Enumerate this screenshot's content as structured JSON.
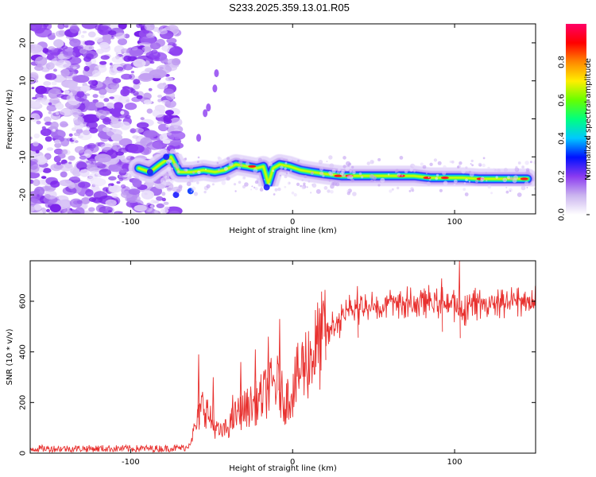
{
  "title": "S233.2025.359.13.01.R05",
  "chart_data": [
    {
      "type": "heatmap",
      "name": "spectrogram",
      "xlabel": "Height of straight line (km)",
      "ylabel": "Frequency (Hz)",
      "xlim": [
        -162,
        150
      ],
      "ylim": [
        -25,
        25
      ],
      "xticks": [
        -100,
        0,
        100
      ],
      "yticks": [
        20,
        10,
        0,
        -10,
        -20
      ],
      "noise_region_x": [
        -162,
        -75
      ],
      "ridge": [
        {
          "x": -95,
          "y": -13
        },
        {
          "x": -88,
          "y": -14
        },
        {
          "x": -82,
          "y": -12
        },
        {
          "x": -75,
          "y": -10
        },
        {
          "x": -70,
          "y": -14
        },
        {
          "x": -62,
          "y": -14
        },
        {
          "x": -55,
          "y": -13.5
        },
        {
          "x": -48,
          "y": -14
        },
        {
          "x": -42,
          "y": -13.5
        },
        {
          "x": -35,
          "y": -12
        },
        {
          "x": -28,
          "y": -12.5
        },
        {
          "x": -22,
          "y": -13
        },
        {
          "x": -18,
          "y": -12.5
        },
        {
          "x": -15,
          "y": -17
        },
        {
          "x": -12,
          "y": -13
        },
        {
          "x": -8,
          "y": -12
        },
        {
          "x": -2,
          "y": -12.5
        },
        {
          "x": 5,
          "y": -13.5
        },
        {
          "x": 12,
          "y": -14
        },
        {
          "x": 20,
          "y": -14.5
        },
        {
          "x": 30,
          "y": -15
        },
        {
          "x": 45,
          "y": -15
        },
        {
          "x": 60,
          "y": -15
        },
        {
          "x": 75,
          "y": -15
        },
        {
          "x": 85,
          "y": -15.5
        },
        {
          "x": 95,
          "y": -15.5
        },
        {
          "x": 105,
          "y": -15.5
        },
        {
          "x": 115,
          "y": -15.8
        },
        {
          "x": 125,
          "y": -15.8
        },
        {
          "x": 135,
          "y": -15.8
        },
        {
          "x": 145,
          "y": -15.8
        }
      ],
      "colorbar": {
        "label": "Normalized spectral amplitude",
        "ticks": [
          "0.0",
          "0.2",
          "0.4",
          "0.6",
          "0.8"
        ],
        "range": [
          0,
          1
        ],
        "colors": [
          "#ffffff",
          "#cbb5ef",
          "#8b3bf0",
          "#0011ff",
          "#00c8ff",
          "#00ff80",
          "#66ff00",
          "#ffee00",
          "#ff8800",
          "#ff0000",
          "#ff0066"
        ]
      }
    },
    {
      "type": "line",
      "name": "snr",
      "xlabel": "Height of straight line (km)",
      "ylabel": "SNR (10 * v/v)",
      "xlim": [
        -162,
        150
      ],
      "ylim": [
        0,
        760
      ],
      "xticks": [
        -100,
        0,
        100
      ],
      "yticks": [
        0,
        200,
        400,
        600
      ],
      "color": "#e8312f",
      "envelope": [
        {
          "x": -162,
          "y": 18
        },
        {
          "x": -80,
          "y": 18
        },
        {
          "x": -65,
          "y": 22
        },
        {
          "x": -60,
          "y": 100
        },
        {
          "x": -55,
          "y": 200
        },
        {
          "x": -50,
          "y": 120
        },
        {
          "x": -45,
          "y": 80
        },
        {
          "x": -40,
          "y": 100
        },
        {
          "x": -35,
          "y": 150
        },
        {
          "x": -28,
          "y": 180
        },
        {
          "x": -22,
          "y": 200
        },
        {
          "x": -15,
          "y": 250
        },
        {
          "x": -10,
          "y": 280
        },
        {
          "x": -5,
          "y": 200
        },
        {
          "x": 0,
          "y": 250
        },
        {
          "x": 5,
          "y": 330
        },
        {
          "x": 15,
          "y": 420
        },
        {
          "x": 25,
          "y": 500
        },
        {
          "x": 35,
          "y": 560
        },
        {
          "x": 45,
          "y": 580
        },
        {
          "x": 60,
          "y": 590
        },
        {
          "x": 80,
          "y": 595
        },
        {
          "x": 95,
          "y": 600
        },
        {
          "x": 100,
          "y": 580
        },
        {
          "x": 105,
          "y": 560
        },
        {
          "x": 110,
          "y": 590
        },
        {
          "x": 130,
          "y": 600
        },
        {
          "x": 150,
          "y": 600
        }
      ],
      "spikes": [
        {
          "x": -58,
          "y": 390
        },
        {
          "x": -49,
          "y": 300
        },
        {
          "x": -37,
          "y": 230
        },
        {
          "x": -32,
          "y": 360
        },
        {
          "x": -23,
          "y": 410
        },
        {
          "x": -15,
          "y": 460
        },
        {
          "x": -8,
          "y": 530
        },
        {
          "x": 20,
          "y": 645
        },
        {
          "x": 40,
          "y": 660
        },
        {
          "x": 92,
          "y": 690
        },
        {
          "x": 103,
          "y": 760
        }
      ]
    }
  ]
}
